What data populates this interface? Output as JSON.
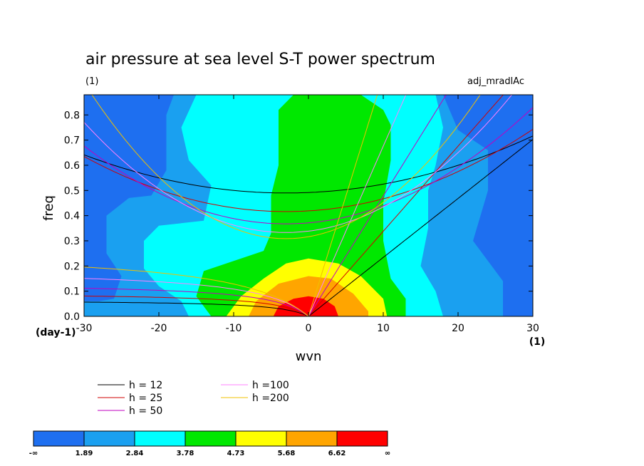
{
  "chart_data": {
    "type": "heatmap",
    "title": "air pressure at sea level S-T power spectrum",
    "subtitle_left": "(1)",
    "subtitle_right": "adj_mradlAc",
    "xlabel": "wvn",
    "ylabel": "freq",
    "x_unit_label": "(1)",
    "y_unit_label": "(day-1)",
    "xlim": [
      -30,
      30
    ],
    "ylim": [
      0,
      0.88
    ],
    "x_ticks": [
      {
        "v": -30,
        "t": "-30"
      },
      {
        "v": -20,
        "t": "-20"
      },
      {
        "v": -10,
        "t": "-10"
      },
      {
        "v": 0,
        "t": "0"
      },
      {
        "v": 10,
        "t": "10"
      },
      {
        "v": 20,
        "t": "20"
      },
      {
        "v": 30,
        "t": "30"
      }
    ],
    "y_ticks": [
      {
        "v": 0,
        "t": "0.0"
      },
      {
        "v": 0.1,
        "t": "0.1"
      },
      {
        "v": 0.2,
        "t": "0.2"
      },
      {
        "v": 0.3,
        "t": "0.3"
      },
      {
        "v": 0.4,
        "t": "0.4"
      },
      {
        "v": 0.5,
        "t": "0.5"
      },
      {
        "v": 0.6,
        "t": "0.6"
      },
      {
        "v": 0.7,
        "t": "0.7"
      },
      {
        "v": 0.8,
        "t": "0.8"
      }
    ],
    "colorbar": {
      "colors": [
        "#1e6ff0",
        "#1aa0f0",
        "#00ffff",
        "#00e800",
        "#ffff00",
        "#ffa500",
        "#ff0000"
      ],
      "labels": [
        "-∞",
        "1.89",
        "2.84",
        "3.78",
        "4.73",
        "5.68",
        "6.62",
        "∞"
      ]
    },
    "contour_levels": [
      {
        "color": "#1aa0f0",
        "boundary": [
          [
            -30,
            0.06
          ],
          [
            -28,
            0.06
          ],
          [
            -26,
            0.07
          ],
          [
            -25,
            0.16
          ],
          [
            -27,
            0.25
          ],
          [
            -27,
            0.4
          ],
          [
            -24,
            0.47
          ],
          [
            -21,
            0.48
          ],
          [
            -19,
            0.58
          ],
          [
            -19,
            0.8
          ],
          [
            -18,
            0.88
          ],
          [
            18,
            0.88
          ],
          [
            20,
            0.74
          ],
          [
            24,
            0.66
          ],
          [
            24,
            0.5
          ],
          [
            22,
            0.3
          ],
          [
            26,
            0.14
          ],
          [
            26,
            0.02
          ],
          [
            26,
            0
          ]
        ]
      },
      {
        "color": "#00ffff",
        "boundary": [
          [
            -16,
            0
          ],
          [
            -17,
            0.06
          ],
          [
            -20,
            0.12
          ],
          [
            -22,
            0.19
          ],
          [
            -22,
            0.3
          ],
          [
            -20,
            0.36
          ],
          [
            -14,
            0.38
          ],
          [
            -13,
            0.52
          ],
          [
            -16,
            0.62
          ],
          [
            -17,
            0.75
          ],
          [
            -15,
            0.88
          ],
          [
            17,
            0.88
          ],
          [
            18,
            0.75
          ],
          [
            17,
            0.6
          ],
          [
            16,
            0.5
          ],
          [
            16,
            0.35
          ],
          [
            15,
            0.2
          ],
          [
            17,
            0.1
          ],
          [
            18,
            0
          ]
        ]
      },
      {
        "color": "#00e800",
        "boundary": [
          [
            -13,
            0
          ],
          [
            -15,
            0.08
          ],
          [
            -14,
            0.18
          ],
          [
            -10,
            0.22
          ],
          [
            -6,
            0.26
          ],
          [
            -5,
            0.33
          ],
          [
            -5,
            0.48
          ],
          [
            -4,
            0.6
          ],
          [
            -4,
            0.82
          ],
          [
            -2,
            0.88
          ],
          [
            7,
            0.88
          ],
          [
            10,
            0.82
          ],
          [
            11,
            0.76
          ],
          [
            11,
            0.62
          ],
          [
            10,
            0.45
          ],
          [
            10,
            0.3
          ],
          [
            11,
            0.15
          ],
          [
            13,
            0.07
          ],
          [
            13,
            0
          ]
        ]
      },
      {
        "color": "#ffff00",
        "boundary": [
          [
            -11,
            0
          ],
          [
            -9,
            0.08
          ],
          [
            -6,
            0.15
          ],
          [
            -3,
            0.21
          ],
          [
            0,
            0.23
          ],
          [
            4,
            0.21
          ],
          [
            7,
            0.16
          ],
          [
            10,
            0.07
          ],
          [
            10.5,
            0
          ]
        ]
      },
      {
        "color": "#ffa500",
        "boundary": [
          [
            -8,
            0
          ],
          [
            -7,
            0.06
          ],
          [
            -4,
            0.13
          ],
          [
            0,
            0.16
          ],
          [
            3,
            0.15
          ],
          [
            6,
            0.09
          ],
          [
            8,
            0.02
          ],
          [
            8,
            0
          ]
        ]
      },
      {
        "color": "#ff0000",
        "boundary": [
          [
            -4.7,
            0
          ],
          [
            -4,
            0.04
          ],
          [
            -2,
            0.07
          ],
          [
            0,
            0.08
          ],
          [
            2,
            0.07
          ],
          [
            3.5,
            0.04
          ],
          [
            4,
            0
          ]
        ]
      }
    ],
    "dispersion_curves": [
      {
        "h": 12,
        "color": "#000000",
        "label": "h = 12"
      },
      {
        "h": 25,
        "color": "#d00000",
        "label": "h = 25"
      },
      {
        "h": 50,
        "color": "#c000c0",
        "label": "h = 50"
      },
      {
        "h": 100,
        "color": "#ff80ff",
        "label": "h =100"
      },
      {
        "h": 200,
        "color": "#f0c000",
        "label": "h =200"
      }
    ]
  }
}
